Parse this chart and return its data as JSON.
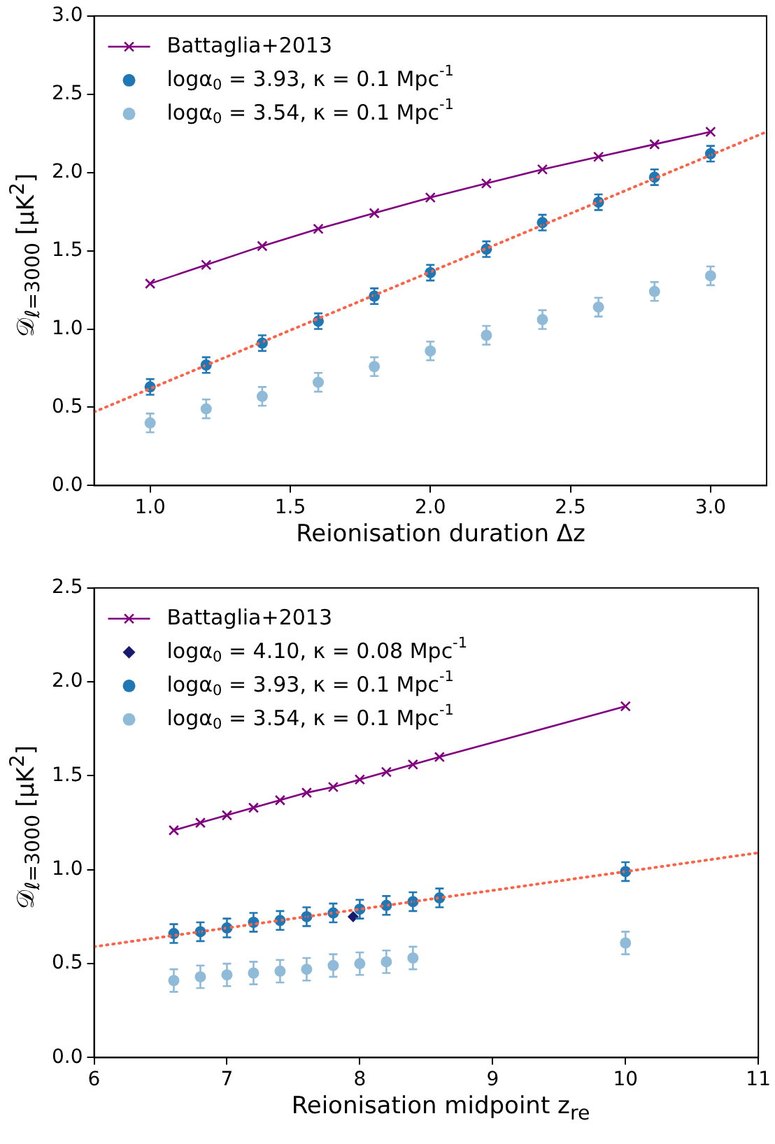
{
  "chart_data": [
    {
      "type": "scatter",
      "xlabel": "Reionisation duration Δz",
      "ylabel": "𝒟$_{ℓ=3000}$ [μK$^{2}$]",
      "xlim": [
        0.8,
        3.2
      ],
      "ylim": [
        0,
        3
      ],
      "xticks": [
        {
          "value": 1,
          "label": "1.0"
        },
        1.5,
        {
          "value": 2,
          "label": "2.0"
        },
        2.5,
        {
          "value": 3,
          "label": "3.0"
        }
      ],
      "yticks": [
        {
          "value": 0,
          "label": "0.0"
        },
        0.5,
        {
          "value": 1,
          "label": "1.0"
        },
        1.5,
        {
          "value": 2,
          "label": "2.0"
        },
        2.5,
        {
          "value": 3,
          "label": "3.0"
        }
      ],
      "grid": false,
      "legend": "top left",
      "series": [
        {
          "type": "line",
          "line_style": "dotted",
          "marker": "none",
          "color": "#ff6347",
          "x": [
            0.8,
            3.2
          ],
          "values": [
            0.47,
            2.26
          ]
        },
        {
          "name": "Battaglia+2013",
          "type": "line",
          "line_style": "solid",
          "marker": "cross",
          "color": "#800080",
          "x": [
            1,
            1.2,
            1.4,
            1.6,
            1.8,
            2,
            2.2,
            2.4,
            2.6,
            2.8,
            3
          ],
          "values": [
            1.29,
            1.41,
            1.53,
            1.64,
            1.74,
            1.84,
            1.93,
            2.02,
            2.1,
            2.18,
            2.26
          ]
        },
        {
          "name": "logα$_{0}$ = 3.93, κ = 0.1 Mpc$^{-1}$",
          "type": "scatter",
          "marker": "circle",
          "color": "#1f77b4",
          "x": [
            1,
            1.2,
            1.4,
            1.6,
            1.8,
            2,
            2.2,
            2.4,
            2.6,
            2.8,
            3
          ],
          "values": [
            0.63,
            0.77,
            0.91,
            1.05,
            1.21,
            1.36,
            1.51,
            1.68,
            1.81,
            1.97,
            2.12
          ],
          "errors": [
            0.05,
            0.05,
            0.05,
            0.05,
            0.05,
            0.05,
            0.05,
            0.05,
            0.05,
            0.05,
            0.05
          ]
        },
        {
          "name": "logα$_{0}$ = 3.54, κ = 0.1 Mpc$^{-1}$",
          "type": "scatter",
          "marker": "circle",
          "color": "#8fbbd9",
          "x": [
            1,
            1.2,
            1.4,
            1.6,
            1.8,
            2,
            2.2,
            2.4,
            2.6,
            2.8,
            3
          ],
          "values": [
            0.4,
            0.49,
            0.57,
            0.66,
            0.76,
            0.86,
            0.96,
            1.06,
            1.14,
            1.24,
            1.34
          ],
          "errors": [
            0.06,
            0.06,
            0.06,
            0.06,
            0.06,
            0.06,
            0.06,
            0.06,
            0.06,
            0.06,
            0.06
          ]
        }
      ]
    },
    {
      "type": "scatter",
      "xlabel": "Reionisation midpoint z$_{re}$",
      "ylabel": "𝒟$_{ℓ=3000}$ [μK$^{2}$]",
      "xlim": [
        6,
        11
      ],
      "ylim": [
        0,
        2.5
      ],
      "xticks": [
        6,
        7,
        8,
        9,
        10,
        11
      ],
      "yticks": [
        {
          "value": 0,
          "label": "0.0"
        },
        0.5,
        {
          "value": 1,
          "label": "1.0"
        },
        1.5,
        {
          "value": 2,
          "label": "2.0"
        },
        2.5
      ],
      "grid": false,
      "legend": "top left",
      "series": [
        {
          "type": "line",
          "line_style": "dotted",
          "marker": "none",
          "color": "#ff6347",
          "x": [
            6,
            11
          ],
          "values": [
            0.59,
            1.09
          ]
        },
        {
          "name": "Battaglia+2013",
          "type": "line",
          "line_style": "solid",
          "marker": "cross",
          "color": "#800080",
          "x": [
            6.6,
            6.8,
            7,
            7.2,
            7.4,
            7.6,
            7.8,
            8,
            8.2,
            8.4,
            8.6,
            10
          ],
          "values": [
            1.21,
            1.25,
            1.29,
            1.33,
            1.37,
            1.41,
            1.44,
            1.48,
            1.52,
            1.56,
            1.6,
            1.87
          ]
        },
        {
          "name": "logα$_{0}$ = 4.10, κ = 0.08 Mpc$^{-1}$",
          "type": "scatter",
          "marker": "diamond",
          "color": "#191970",
          "x": [
            7.95
          ],
          "values": [
            0.75
          ]
        },
        {
          "name": "logα$_{0}$ = 3.93, κ = 0.1 Mpc$^{-1}$",
          "type": "scatter",
          "marker": "circle",
          "color": "#1f77b4",
          "x": [
            6.6,
            6.8,
            7,
            7.2,
            7.4,
            7.6,
            7.8,
            8,
            8.2,
            8.4,
            8.6,
            10
          ],
          "values": [
            0.66,
            0.67,
            0.69,
            0.72,
            0.73,
            0.75,
            0.77,
            0.79,
            0.81,
            0.83,
            0.85,
            0.99
          ],
          "errors": [
            0.05,
            0.05,
            0.05,
            0.05,
            0.05,
            0.05,
            0.05,
            0.05,
            0.05,
            0.05,
            0.05,
            0.05
          ]
        },
        {
          "name": "logα$_{0}$ = 3.54, κ = 0.1 Mpc$^{-1}$",
          "type": "scatter",
          "marker": "circle",
          "color": "#8fbbd9",
          "x": [
            6.6,
            6.8,
            7,
            7.2,
            7.4,
            7.6,
            7.8,
            8,
            8.2,
            8.4,
            10
          ],
          "values": [
            0.41,
            0.43,
            0.44,
            0.45,
            0.46,
            0.47,
            0.49,
            0.5,
            0.51,
            0.53,
            0.61
          ],
          "errors": [
            0.06,
            0.06,
            0.06,
            0.06,
            0.06,
            0.06,
            0.06,
            0.06,
            0.06,
            0.06,
            0.06
          ]
        }
      ]
    }
  ]
}
